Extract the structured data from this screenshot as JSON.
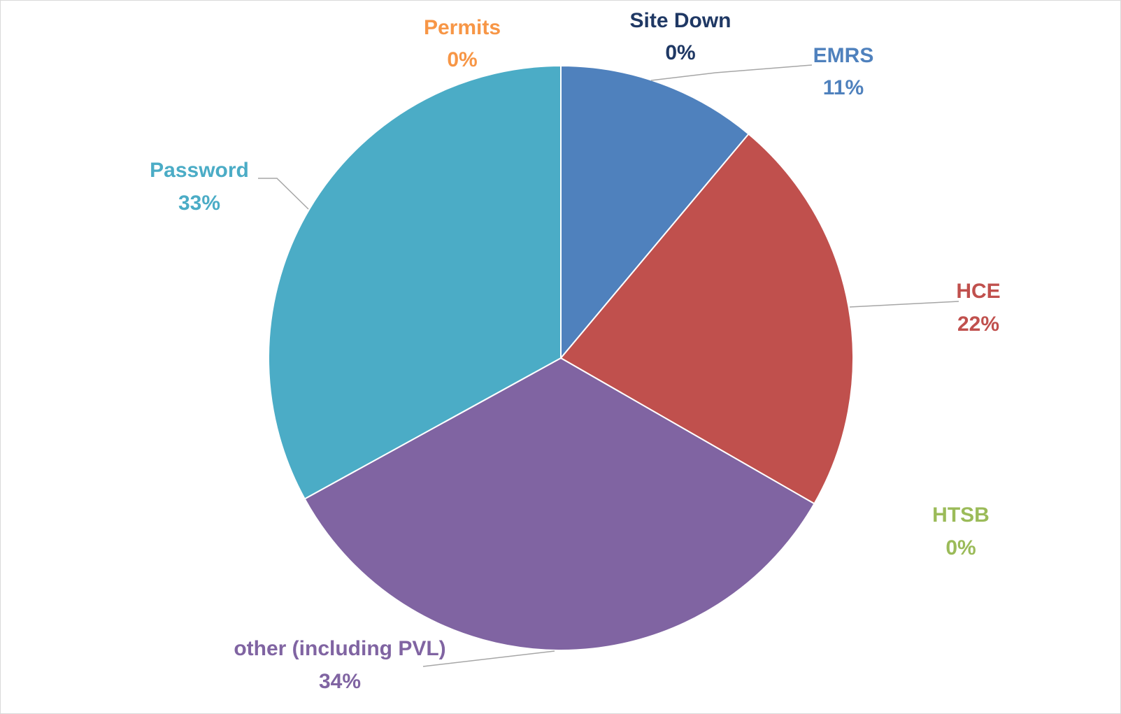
{
  "chart_data": {
    "type": "pie",
    "title": "",
    "slices": [
      {
        "name": "EMRS",
        "label": "11%",
        "value": 11.1,
        "color": "#4f81bd"
      },
      {
        "name": "HCE",
        "label": "22%",
        "value": 22.2,
        "color": "#c0504d"
      },
      {
        "name": "HTSB",
        "label": "0%",
        "value": 0,
        "color": "#9bbb59"
      },
      {
        "name": "other (including PVL)",
        "label": "34%",
        "value": 33.7,
        "color": "#8064a2"
      },
      {
        "name": "Password",
        "label": "33%",
        "value": 33.0,
        "color": "#4bacc6"
      },
      {
        "name": "Permits",
        "label": "0%",
        "value": 0,
        "color": "#f79646"
      },
      {
        "name": "Site Down",
        "label": "0%",
        "value": 0,
        "color": "#1f3864"
      }
    ],
    "start_angle": "12 o'clock",
    "direction": "clockwise",
    "legend": "none",
    "data_labels": "outside with leader lines"
  }
}
